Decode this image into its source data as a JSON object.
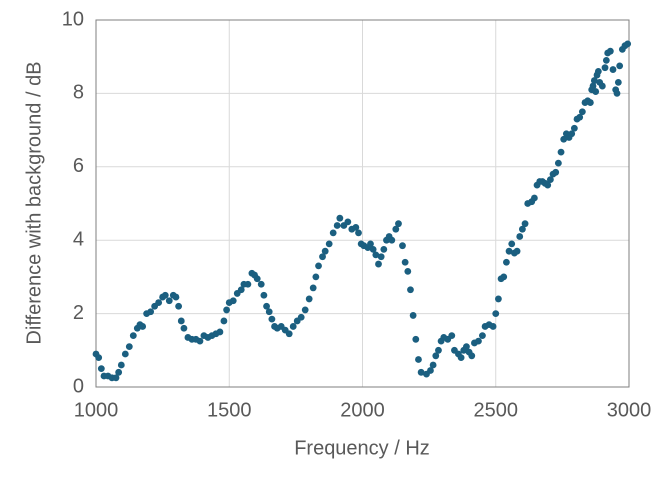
{
  "chart_data": {
    "type": "scatter",
    "x_label": "Frequency / Hz",
    "y_label": "Difference with background / dB",
    "color": "#1b5f80",
    "grid": true,
    "xlim": [
      1000,
      3000
    ],
    "xticks": [
      1000,
      1500,
      2000,
      2500,
      3000
    ],
    "ylim": [
      0,
      10
    ],
    "yticks": [
      0,
      2,
      4,
      6,
      8,
      10
    ],
    "x": [
      1000,
      1010,
      1020,
      1030,
      1045,
      1060,
      1075,
      1085,
      1095,
      1110,
      1125,
      1140,
      1155,
      1165,
      1175,
      1190,
      1205,
      1220,
      1235,
      1250,
      1260,
      1275,
      1290,
      1300,
      1310,
      1320,
      1330,
      1345,
      1360,
      1375,
      1390,
      1405,
      1420,
      1435,
      1450,
      1465,
      1480,
      1490,
      1500,
      1515,
      1530,
      1545,
      1555,
      1570,
      1585,
      1595,
      1605,
      1620,
      1630,
      1640,
      1650,
      1660,
      1670,
      1680,
      1695,
      1710,
      1725,
      1740,
      1755,
      1770,
      1785,
      1800,
      1815,
      1825,
      1835,
      1850,
      1860,
      1875,
      1890,
      1905,
      1915,
      1930,
      1945,
      1960,
      1975,
      1985,
      1995,
      2005,
      2020,
      2030,
      2040,
      2050,
      2060,
      2070,
      2080,
      2090,
      2100,
      2110,
      2125,
      2135,
      2150,
      2160,
      2170,
      2180,
      2190,
      2200,
      2210,
      2220,
      2240,
      2255,
      2265,
      2275,
      2285,
      2295,
      2305,
      2320,
      2335,
      2345,
      2360,
      2370,
      2380,
      2390,
      2400,
      2410,
      2420,
      2435,
      2450,
      2460,
      2475,
      2490,
      2500,
      2510,
      2520,
      2530,
      2540,
      2550,
      2560,
      2570,
      2580,
      2590,
      2600,
      2610,
      2620,
      2635,
      2645,
      2655,
      2665,
      2675,
      2685,
      2695,
      2705,
      2715,
      2725,
      2735,
      2745,
      2755,
      2765,
      2775,
      2785,
      2795,
      2805,
      2815,
      2825,
      2835,
      2845,
      2855,
      2860,
      2865,
      2870,
      2875,
      2880,
      2885,
      2890,
      2900,
      2910,
      2915,
      2920,
      2930,
      2940,
      2950,
      2955,
      2960,
      2965,
      2975,
      2985,
      2995
    ],
    "values": [
      0.9,
      0.8,
      0.5,
      0.3,
      0.3,
      0.25,
      0.25,
      0.4,
      0.6,
      0.9,
      1.1,
      1.4,
      1.6,
      1.7,
      1.65,
      2.0,
      2.05,
      2.2,
      2.3,
      2.45,
      2.5,
      2.35,
      2.5,
      2.45,
      2.2,
      1.8,
      1.6,
      1.35,
      1.3,
      1.3,
      1.25,
      1.4,
      1.35,
      1.4,
      1.45,
      1.5,
      1.8,
      2.1,
      2.3,
      2.35,
      2.55,
      2.65,
      2.8,
      2.8,
      3.1,
      3.05,
      2.95,
      2.8,
      2.5,
      2.2,
      2.05,
      1.85,
      1.65,
      1.6,
      1.65,
      1.55,
      1.45,
      1.65,
      1.8,
      1.9,
      2.1,
      2.4,
      2.7,
      3.0,
      3.3,
      3.55,
      3.7,
      3.9,
      4.2,
      4.4,
      4.6,
      4.4,
      4.5,
      4.3,
      4.35,
      4.2,
      3.9,
      3.85,
      3.8,
      3.9,
      3.75,
      3.6,
      3.35,
      3.55,
      3.75,
      4.0,
      4.1,
      4.0,
      4.3,
      4.45,
      3.85,
      3.4,
      3.15,
      2.65,
      1.95,
      1.3,
      0.75,
      0.4,
      0.35,
      0.45,
      0.6,
      0.85,
      1.0,
      1.25,
      1.35,
      1.3,
      1.4,
      1.0,
      0.9,
      0.8,
      1.0,
      1.1,
      0.95,
      0.85,
      1.2,
      1.25,
      1.4,
      1.65,
      1.7,
      1.65,
      2.0,
      2.4,
      2.95,
      3.0,
      3.4,
      3.7,
      3.9,
      3.65,
      3.7,
      4.1,
      4.3,
      4.45,
      5.0,
      5.05,
      5.15,
      5.5,
      5.6,
      5.6,
      5.55,
      5.5,
      5.65,
      5.8,
      5.85,
      6.1,
      6.4,
      6.75,
      6.9,
      6.8,
      6.9,
      7.05,
      7.3,
      7.35,
      7.5,
      7.75,
      7.8,
      7.75,
      8.1,
      8.2,
      8.35,
      8.05,
      8.5,
      8.6,
      8.3,
      8.2,
      8.7,
      8.9,
      9.1,
      9.15,
      8.65,
      8.1,
      8.0,
      8.3,
      8.75,
      9.2,
      9.3,
      9.35
    ]
  }
}
